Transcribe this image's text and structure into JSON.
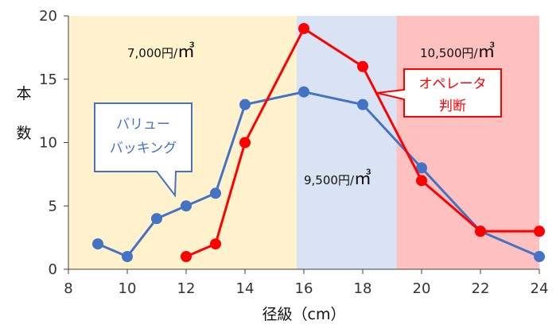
{
  "chart_data": {
    "type": "line",
    "xlabel": "径級（cm）",
    "ylabel": "本数",
    "xlim": [
      8,
      24
    ],
    "ylim": [
      0,
      20
    ],
    "x_ticks": [
      8,
      10,
      12,
      14,
      16,
      18,
      20,
      22,
      24
    ],
    "y_ticks": [
      0,
      5,
      10,
      15,
      20
    ],
    "grid": false,
    "series": [
      {
        "name": "バリューバッキング",
        "color": "#4472C4",
        "x": [
          9,
          10,
          11,
          12,
          13,
          14,
          16,
          18,
          20,
          22,
          24
        ],
        "y": [
          2,
          1,
          4,
          5,
          6,
          13,
          14,
          13,
          8,
          3,
          1
        ]
      },
      {
        "name": "オペレータ判断",
        "color": "#FF0000",
        "x": [
          12,
          13,
          14,
          16,
          18,
          20,
          22,
          24
        ],
        "y": [
          1,
          2,
          10,
          19,
          16,
          7,
          3,
          3
        ]
      }
    ],
    "bands": [
      {
        "x_start": 8,
        "x_end": 15.75,
        "color": "#FFF2CC",
        "label": "7,000円/",
        "unit": "㎥"
      },
      {
        "x_start": 15.75,
        "x_end": 19.15,
        "color": "#DAE3F3",
        "label": "9,500円/",
        "unit": "㎥"
      },
      {
        "x_start": 19.15,
        "x_end": 24,
        "color": "#FFC0C0",
        "label": "10,500円/",
        "unit": "㎥"
      }
    ],
    "callouts": [
      {
        "lines": [
          "バリュー",
          "バッキング"
        ],
        "color": "#4472C4"
      },
      {
        "lines": [
          "オペレータ",
          "判断"
        ],
        "color": "#FF0000"
      }
    ]
  }
}
